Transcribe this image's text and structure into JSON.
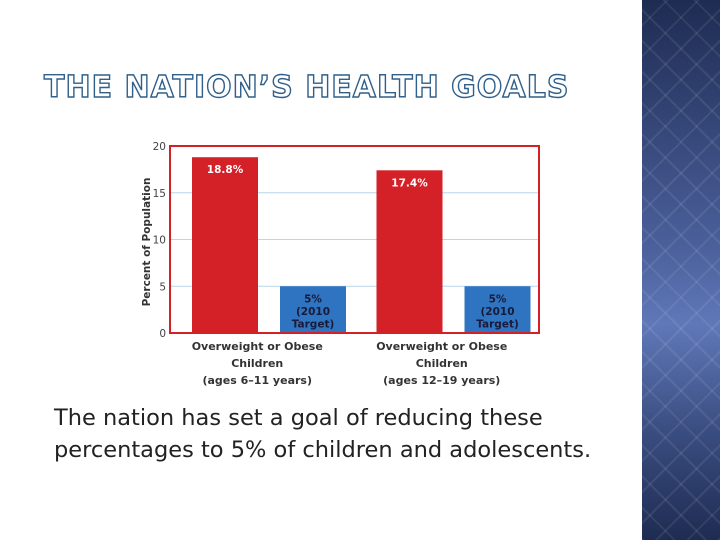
{
  "title": "THE NATION’S HEALTH GOALS",
  "caption": "The nation has set a goal of reducing these percentages to 5% of children and adolescents.",
  "colors": {
    "actual": "#d42027",
    "target": "#2e74c0",
    "frame": "#d42027",
    "title_outline": "#2f5f8a"
  },
  "chart_data": {
    "type": "bar",
    "title": "",
    "ylabel": "Percent of Population",
    "ylim": [
      0,
      20
    ],
    "yticks": [
      "0",
      "5",
      "10",
      "15",
      "20"
    ],
    "grid": true,
    "categories": [
      [
        "Overweight or Obese",
        "Children",
        "(ages 6–11 years)"
      ],
      [
        "Overweight or Obese",
        "Children",
        "(ages 12–19 years)"
      ]
    ],
    "bars": [
      {
        "group": 0,
        "kind": "actual",
        "value": 18.8,
        "label": [
          "18.8%"
        ]
      },
      {
        "group": 0,
        "kind": "target",
        "value": 5,
        "label": [
          "5%",
          "(2010",
          "Target)"
        ]
      },
      {
        "group": 1,
        "kind": "actual",
        "value": 17.4,
        "label": [
          "17.4%"
        ]
      },
      {
        "group": 1,
        "kind": "target",
        "value": 5,
        "label": [
          "5%",
          "(2010",
          "Target)"
        ]
      }
    ]
  }
}
